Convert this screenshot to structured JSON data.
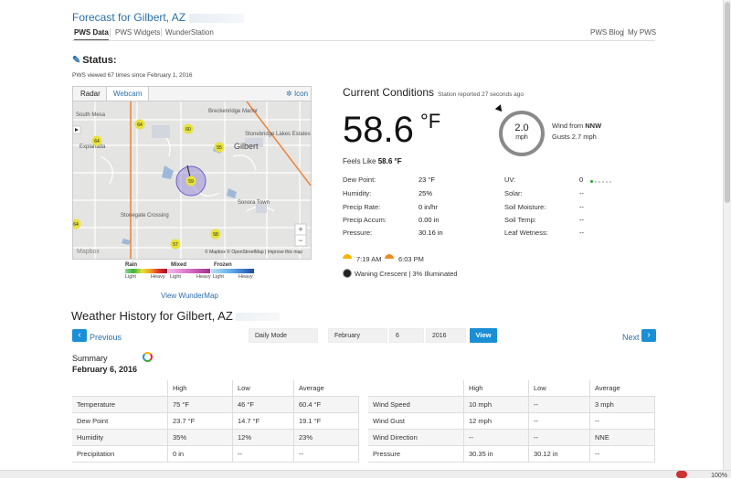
{
  "page": {
    "title": "Forecast for Gilbert, AZ",
    "tabs": [
      "PWS Data",
      "PWS Widgets",
      "WunderStation"
    ],
    "right_tabs": [
      "PWS Blog",
      "My PWS"
    ]
  },
  "status": {
    "heading": "Status:",
    "views": "PWS viewed 67 times since February 1, 2016"
  },
  "map": {
    "tabs": [
      "Radar",
      "Webcam"
    ],
    "icon_label": "Icon",
    "labels": [
      "South Mesa",
      "Gilbert",
      "Explanada",
      "Breckenridge Manor",
      "Stonebridge Lakes Estates",
      "Sonora Town",
      "Stonegate Crossing",
      "Mapbox"
    ],
    "attribution": "© Mapbox © OpenStreetMap | Improve this map",
    "markers": [
      "64",
      "60",
      "55",
      "64",
      "59",
      "64",
      "57",
      "58"
    ],
    "zoom_in": "+",
    "zoom_out": "−",
    "view_link": "View WunderMap"
  },
  "legend": {
    "rain": "Rain",
    "mixed": "Mixed",
    "frozen": "Frozen",
    "light": "Light",
    "heavy": "Heavy"
  },
  "current": {
    "title": "Current Conditions",
    "reported": "Station reported 27 seconds ago",
    "temp": "58.6",
    "unit": "°F",
    "feels_label": "Feels Like",
    "feels_value": "58.6 °F",
    "wind_speed": "2.0",
    "wind_unit": "mph",
    "wind_from_label": "Wind from",
    "wind_from": "NNW",
    "gusts_label": "Gusts",
    "gusts": "2.7 mph",
    "left_rows": [
      {
        "label": "Dew Point:",
        "value": "23 °F"
      },
      {
        "label": "Humidity:",
        "value": "25%"
      },
      {
        "label": "Precip Rate:",
        "value": "0 in/hr"
      },
      {
        "label": "Precip Accum:",
        "value": "0.00 in"
      },
      {
        "label": "Pressure:",
        "value": "30.16 in"
      }
    ],
    "right_rows": [
      {
        "label": "UV:",
        "value": "0"
      },
      {
        "label": "Solar:",
        "value": "--"
      },
      {
        "label": "Soil Moisture:",
        "value": "--"
      },
      {
        "label": "Soil Temp:",
        "value": "--"
      },
      {
        "label": "Leaf Wetness:",
        "value": "--"
      }
    ],
    "sunrise": "7:19 AM",
    "sunset": "6:03 PM",
    "moon": "Waning Crescent | 3% Illuminated"
  },
  "history": {
    "title": "Weather History for Gilbert, AZ",
    "previous": "Previous",
    "next": "Next",
    "mode": "Daily Mode",
    "month": "February",
    "day": "6",
    "year": "2016",
    "view": "View",
    "summary": "Summary",
    "date": "February 6, 2016",
    "headers": [
      "High",
      "Low",
      "Average"
    ],
    "left_table": [
      {
        "label": "Temperature",
        "high": "75 °F",
        "low": "46 °F",
        "avg": "60.4 °F"
      },
      {
        "label": "Dew Point",
        "high": "23.7 °F",
        "low": "14.7 °F",
        "avg": "19.1 °F"
      },
      {
        "label": "Humidity",
        "high": "35%",
        "low": "12%",
        "avg": "23%"
      },
      {
        "label": "Precipitation",
        "high": "0 in",
        "low": "--",
        "avg": "--"
      }
    ],
    "right_table": [
      {
        "label": "Wind Speed",
        "high": "10 mph",
        "low": "--",
        "avg": "3 mph"
      },
      {
        "label": "Wind Gust",
        "high": "12 mph",
        "low": "--",
        "avg": "--"
      },
      {
        "label": "Wind Direction",
        "high": "--",
        "low": "--",
        "avg": "NNE"
      },
      {
        "label": "Pressure",
        "high": "30.35 in",
        "low": "30.12 in",
        "avg": "--"
      }
    ]
  },
  "browser": {
    "zoom": "100%"
  },
  "colors": {
    "link": "#2a6fa8",
    "button": "#1a8fd6",
    "sun": "#f7b500",
    "sunset": "#f08a24"
  }
}
